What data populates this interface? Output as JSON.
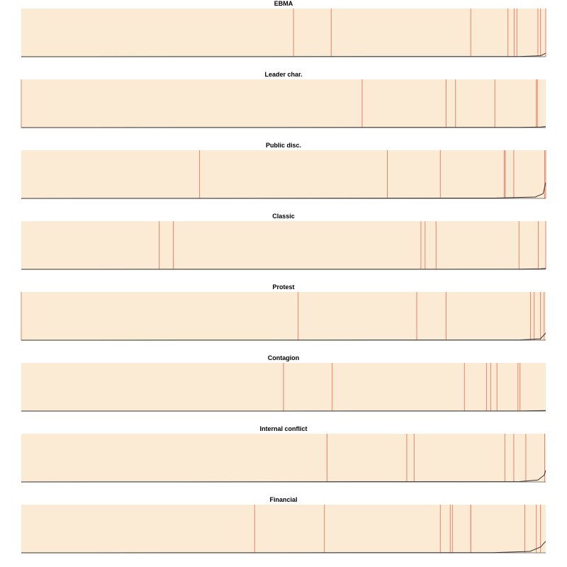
{
  "colors": {
    "background": "#fcebd4",
    "event_line": "#e8826a",
    "curve": "#333333",
    "baseline": "#555555"
  },
  "chart_data": [
    {
      "type": "line",
      "title": "EBMA",
      "xlim": [
        0,
        1
      ],
      "ylim": [
        0,
        1
      ],
      "events": [
        0.519,
        0.591,
        0.857,
        0.928,
        0.94,
        0.945,
        0.985,
        0.99,
        1.0
      ],
      "curve": [
        [
          0,
          0
        ],
        [
          0.95,
          0.005
        ],
        [
          0.99,
          0.02
        ],
        [
          1.0,
          0.07
        ]
      ]
    },
    {
      "type": "line",
      "title": "Leader char.",
      "xlim": [
        0,
        1
      ],
      "ylim": [
        0,
        1
      ],
      "events": [
        0.0,
        0.65,
        0.81,
        0.828,
        0.903,
        0.982,
        0.984
      ],
      "curve": [
        [
          0,
          0
        ],
        [
          0.95,
          0.004
        ],
        [
          0.99,
          0.01
        ],
        [
          1.0,
          0.02
        ]
      ]
    },
    {
      "type": "line",
      "title": "Public disc.",
      "xlim": [
        0,
        1
      ],
      "ylim": [
        0,
        1
      ],
      "events": [
        0.34,
        0.698,
        0.799,
        0.921,
        0.923,
        0.939,
        0.998,
        1.0
      ],
      "curve": [
        [
          0,
          0
        ],
        [
          0.9,
          0.008
        ],
        [
          0.98,
          0.03
        ],
        [
          0.995,
          0.1
        ],
        [
          1.0,
          0.33
        ]
      ]
    },
    {
      "type": "line",
      "title": "Classic",
      "xlim": [
        0,
        1
      ],
      "ylim": [
        0,
        1
      ],
      "events": [
        0.263,
        0.29,
        0.762,
        0.77,
        0.791,
        0.949,
        0.986,
        1.0
      ],
      "curve": [
        [
          0,
          0
        ],
        [
          0.95,
          0.003
        ],
        [
          0.99,
          0.01
        ],
        [
          1.0,
          0.02
        ]
      ]
    },
    {
      "type": "line",
      "title": "Protest",
      "xlim": [
        0,
        1
      ],
      "ylim": [
        0,
        1
      ],
      "events": [
        0.0,
        0.528,
        0.754,
        0.81,
        0.971,
        0.978,
        0.99,
        0.997
      ],
      "curve": [
        [
          0,
          0
        ],
        [
          0.95,
          0.005
        ],
        [
          0.99,
          0.03
        ],
        [
          1.0,
          0.15
        ]
      ]
    },
    {
      "type": "line",
      "title": "Contagion",
      "xlim": [
        0,
        1
      ],
      "ylim": [
        0,
        1
      ],
      "events": [
        0.5,
        0.593,
        0.845,
        0.887,
        0.895,
        0.907,
        0.947,
        0.951
      ],
      "curve": [
        [
          0,
          0
        ],
        [
          0.95,
          0.002
        ],
        [
          1.0,
          0.01
        ]
      ]
    },
    {
      "type": "line",
      "title": "Internal conflict",
      "xlim": [
        0,
        1
      ],
      "ylim": [
        0,
        1
      ],
      "events": [
        0.583,
        0.735,
        0.749,
        0.922,
        0.939,
        0.962,
        0.998
      ],
      "curve": [
        [
          0,
          0
        ],
        [
          0.95,
          0.008
        ],
        [
          0.985,
          0.04
        ],
        [
          0.997,
          0.14
        ],
        [
          1.0,
          0.24
        ]
      ]
    },
    {
      "type": "line",
      "title": "Financial",
      "xlim": [
        0,
        1
      ],
      "ylim": [
        0,
        1
      ],
      "events": [
        0.445,
        0.578,
        0.799,
        0.818,
        0.822,
        0.857,
        0.857,
        0.96,
        0.982,
        0.99
      ],
      "curve": [
        [
          0,
          0
        ],
        [
          0.9,
          0.005
        ],
        [
          0.97,
          0.03
        ],
        [
          0.99,
          0.12
        ],
        [
          1.0,
          0.24
        ]
      ]
    }
  ]
}
